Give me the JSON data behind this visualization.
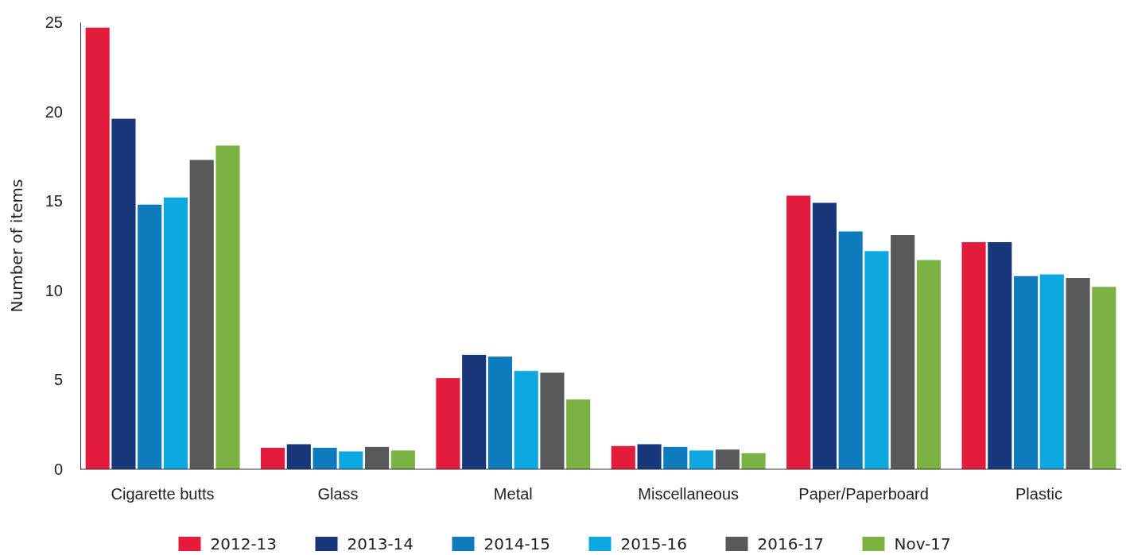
{
  "chart_data": {
    "type": "bar",
    "ylabel": "Number of items",
    "categories": [
      "Cigarette butts",
      "Glass",
      "Metal",
      "Miscellaneous",
      "Paper/Paperboard",
      "Plastic"
    ],
    "series": [
      {
        "name": "2012-13",
        "color": "#e31c3d",
        "values": [
          24.7,
          1.2,
          5.1,
          1.3,
          15.3,
          12.7
        ]
      },
      {
        "name": "2013-14",
        "color": "#17377a",
        "values": [
          19.6,
          1.4,
          6.4,
          1.4,
          14.9,
          12.7
        ]
      },
      {
        "name": "2014-15",
        "color": "#0e7bbd",
        "values": [
          14.8,
          1.2,
          6.3,
          1.25,
          13.3,
          10.8
        ]
      },
      {
        "name": "2015-16",
        "color": "#0ea8e0",
        "values": [
          15.2,
          1.0,
          5.5,
          1.05,
          12.2,
          10.9
        ]
      },
      {
        "name": "2016-17",
        "color": "#58595b",
        "values": [
          17.3,
          1.25,
          5.4,
          1.1,
          13.1,
          10.7
        ]
      },
      {
        "name": "Nov-17",
        "color": "#7cb144",
        "values": [
          18.1,
          1.05,
          3.9,
          0.9,
          11.7,
          10.2
        ]
      }
    ],
    "ylim": [
      0,
      25
    ],
    "yticks": [
      0,
      5,
      10,
      15,
      20,
      25
    ],
    "grid": false,
    "legend": "bottom"
  }
}
